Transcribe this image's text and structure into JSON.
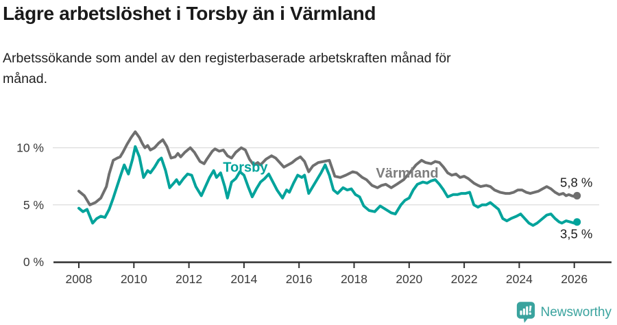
{
  "header": {
    "title": "Lägre arbetslöshet i Torsby än i Värmland",
    "subtitle": "Arbetssökande som andel av den registerbaserade arbetskraften månad för\nmånad."
  },
  "footer": {
    "brand": "Newsworthy",
    "brand_color": "#3aa39e"
  },
  "chart_data": {
    "type": "line",
    "title": "Lägre arbetslöshet i Torsby än i Värmland",
    "subtitle": "Arbetssökande som andel av den registerbaserade arbetskraften månad för månad.",
    "xlabel": "",
    "ylabel": "",
    "x_range": [
      2008,
      2026.2
    ],
    "ylim": [
      0,
      12
    ],
    "grid": true,
    "legend_position": "inline-labels",
    "x_ticks": [
      2008,
      2010,
      2012,
      2014,
      2016,
      2018,
      2020,
      2022,
      2024,
      2026
    ],
    "y_ticks": [
      {
        "value": 0,
        "label": "0 %"
      },
      {
        "value": 5,
        "label": "5 %"
      },
      {
        "value": 10,
        "label": "10 %"
      }
    ],
    "series": [
      {
        "name": "Värmland",
        "color": "#6f6f6f",
        "label_color": "#7d7d7d",
        "label_pos": [
          2019.93,
          7.4
        ],
        "end_label": "5,8 %",
        "end_label_side": "above",
        "end_value": 5.8,
        "points": [
          [
            2008.0,
            6.2
          ],
          [
            2008.2,
            5.8
          ],
          [
            2008.4,
            5.0
          ],
          [
            2008.6,
            5.2
          ],
          [
            2008.8,
            5.6
          ],
          [
            2009.0,
            6.6
          ],
          [
            2009.1,
            7.7
          ],
          [
            2009.25,
            8.9
          ],
          [
            2009.4,
            9.1
          ],
          [
            2009.5,
            9.2
          ],
          [
            2009.6,
            9.6
          ],
          [
            2009.75,
            10.3
          ],
          [
            2009.9,
            10.9
          ],
          [
            2010.05,
            11.4
          ],
          [
            2010.2,
            10.9
          ],
          [
            2010.3,
            10.4
          ],
          [
            2010.4,
            10.0
          ],
          [
            2010.5,
            10.2
          ],
          [
            2010.6,
            9.8
          ],
          [
            2010.75,
            10.0
          ],
          [
            2010.9,
            10.4
          ],
          [
            2011.05,
            10.7
          ],
          [
            2011.2,
            10.1
          ],
          [
            2011.35,
            9.1
          ],
          [
            2011.5,
            9.2
          ],
          [
            2011.6,
            9.5
          ],
          [
            2011.7,
            9.2
          ],
          [
            2011.85,
            9.6
          ],
          [
            2012.05,
            10.0
          ],
          [
            2012.2,
            9.6
          ],
          [
            2012.4,
            8.8
          ],
          [
            2012.55,
            8.6
          ],
          [
            2012.65,
            9.0
          ],
          [
            2012.85,
            9.7
          ],
          [
            2012.95,
            9.9
          ],
          [
            2013.1,
            9.7
          ],
          [
            2013.25,
            9.8
          ],
          [
            2013.4,
            9.3
          ],
          [
            2013.55,
            9.1
          ],
          [
            2013.7,
            9.6
          ],
          [
            2013.9,
            10.0
          ],
          [
            2014.05,
            9.8
          ],
          [
            2014.2,
            9.0
          ],
          [
            2014.35,
            8.5
          ],
          [
            2014.5,
            8.7
          ],
          [
            2014.6,
            8.5
          ],
          [
            2014.8,
            9.0
          ],
          [
            2015.0,
            9.3
          ],
          [
            2015.15,
            9.1
          ],
          [
            2015.3,
            8.7
          ],
          [
            2015.45,
            8.3
          ],
          [
            2015.6,
            8.5
          ],
          [
            2015.75,
            8.7
          ],
          [
            2015.9,
            9.0
          ],
          [
            2016.05,
            9.2
          ],
          [
            2016.2,
            8.8
          ],
          [
            2016.35,
            7.9
          ],
          [
            2016.5,
            8.4
          ],
          [
            2016.7,
            8.7
          ],
          [
            2016.9,
            8.8
          ],
          [
            2017.1,
            8.9
          ],
          [
            2017.3,
            7.5
          ],
          [
            2017.5,
            7.4
          ],
          [
            2017.7,
            7.6
          ],
          [
            2017.95,
            7.9
          ],
          [
            2018.1,
            7.8
          ],
          [
            2018.3,
            7.4
          ],
          [
            2018.45,
            7.2
          ],
          [
            2018.65,
            6.7
          ],
          [
            2018.85,
            6.5
          ],
          [
            2019.0,
            6.7
          ],
          [
            2019.15,
            6.8
          ],
          [
            2019.35,
            6.5
          ],
          [
            2019.55,
            6.8
          ],
          [
            2019.8,
            7.2
          ],
          [
            2020.05,
            7.9
          ],
          [
            2020.25,
            8.5
          ],
          [
            2020.45,
            8.9
          ],
          [
            2020.6,
            8.7
          ],
          [
            2020.8,
            8.6
          ],
          [
            2020.95,
            8.8
          ],
          [
            2021.1,
            8.7
          ],
          [
            2021.25,
            8.3
          ],
          [
            2021.4,
            7.8
          ],
          [
            2021.55,
            7.6
          ],
          [
            2021.7,
            7.7
          ],
          [
            2021.85,
            7.4
          ],
          [
            2022.0,
            7.5
          ],
          [
            2022.15,
            7.3
          ],
          [
            2022.35,
            6.9
          ],
          [
            2022.5,
            6.7
          ],
          [
            2022.6,
            6.6
          ],
          [
            2022.8,
            6.7
          ],
          [
            2022.95,
            6.6
          ],
          [
            2023.1,
            6.3
          ],
          [
            2023.3,
            6.1
          ],
          [
            2023.5,
            6.0
          ],
          [
            2023.65,
            6.0
          ],
          [
            2023.8,
            6.1
          ],
          [
            2023.95,
            6.3
          ],
          [
            2024.1,
            6.3
          ],
          [
            2024.25,
            6.1
          ],
          [
            2024.4,
            6.0
          ],
          [
            2024.55,
            6.1
          ],
          [
            2024.7,
            6.2
          ],
          [
            2024.85,
            6.4
          ],
          [
            2025.0,
            6.6
          ],
          [
            2025.15,
            6.4
          ],
          [
            2025.3,
            6.1
          ],
          [
            2025.45,
            5.9
          ],
          [
            2025.6,
            6.0
          ],
          [
            2025.7,
            5.8
          ],
          [
            2025.8,
            5.9
          ],
          [
            2025.9,
            5.8
          ],
          [
            2026.05,
            5.7
          ],
          [
            2026.1,
            5.8
          ]
        ]
      },
      {
        "name": "Torsby",
        "color": "#00a39b",
        "label_color": "#00a39b",
        "label_pos": [
          2014.05,
          7.9
        ],
        "end_label": "3,5 %",
        "end_label_side": "below",
        "end_value": 3.5,
        "points": [
          [
            2008.0,
            4.7
          ],
          [
            2008.15,
            4.4
          ],
          [
            2008.3,
            4.6
          ],
          [
            2008.5,
            3.4
          ],
          [
            2008.65,
            3.8
          ],
          [
            2008.8,
            4.0
          ],
          [
            2008.95,
            3.9
          ],
          [
            2009.1,
            4.6
          ],
          [
            2009.25,
            5.6
          ],
          [
            2009.4,
            6.7
          ],
          [
            2009.55,
            7.8
          ],
          [
            2009.65,
            8.5
          ],
          [
            2009.8,
            7.7
          ],
          [
            2009.95,
            9.0
          ],
          [
            2010.05,
            10.1
          ],
          [
            2010.2,
            9.2
          ],
          [
            2010.35,
            7.4
          ],
          [
            2010.5,
            8.0
          ],
          [
            2010.6,
            7.8
          ],
          [
            2010.75,
            8.3
          ],
          [
            2010.9,
            8.9
          ],
          [
            2011.0,
            9.1
          ],
          [
            2011.15,
            8.0
          ],
          [
            2011.3,
            6.5
          ],
          [
            2011.45,
            6.9
          ],
          [
            2011.55,
            7.2
          ],
          [
            2011.65,
            6.8
          ],
          [
            2011.8,
            7.3
          ],
          [
            2011.95,
            7.7
          ],
          [
            2012.1,
            7.6
          ],
          [
            2012.25,
            6.6
          ],
          [
            2012.45,
            5.8
          ],
          [
            2012.6,
            6.6
          ],
          [
            2012.75,
            7.4
          ],
          [
            2012.9,
            8.0
          ],
          [
            2013.0,
            7.4
          ],
          [
            2013.15,
            7.8
          ],
          [
            2013.3,
            6.6
          ],
          [
            2013.4,
            5.6
          ],
          [
            2013.55,
            7.0
          ],
          [
            2013.7,
            7.3
          ],
          [
            2013.85,
            7.9
          ],
          [
            2014.0,
            7.6
          ],
          [
            2014.15,
            6.6
          ],
          [
            2014.3,
            5.7
          ],
          [
            2014.45,
            6.4
          ],
          [
            2014.6,
            7.0
          ],
          [
            2014.75,
            7.3
          ],
          [
            2014.9,
            7.7
          ],
          [
            2015.05,
            7.0
          ],
          [
            2015.2,
            6.3
          ],
          [
            2015.4,
            5.6
          ],
          [
            2015.55,
            6.3
          ],
          [
            2015.65,
            6.1
          ],
          [
            2015.8,
            6.9
          ],
          [
            2015.95,
            7.6
          ],
          [
            2016.1,
            7.4
          ],
          [
            2016.2,
            7.6
          ],
          [
            2016.35,
            6.0
          ],
          [
            2016.5,
            6.6
          ],
          [
            2016.65,
            7.2
          ],
          [
            2016.8,
            7.8
          ],
          [
            2016.95,
            8.5
          ],
          [
            2017.1,
            7.6
          ],
          [
            2017.25,
            6.3
          ],
          [
            2017.4,
            6.0
          ],
          [
            2017.6,
            6.5
          ],
          [
            2017.75,
            6.3
          ],
          [
            2017.9,
            6.4
          ],
          [
            2018.05,
            5.9
          ],
          [
            2018.2,
            5.7
          ],
          [
            2018.35,
            4.9
          ],
          [
            2018.55,
            4.5
          ],
          [
            2018.75,
            4.4
          ],
          [
            2018.95,
            4.9
          ],
          [
            2019.15,
            4.6
          ],
          [
            2019.35,
            4.3
          ],
          [
            2019.5,
            4.2
          ],
          [
            2019.7,
            5.0
          ],
          [
            2019.85,
            5.4
          ],
          [
            2020.0,
            5.6
          ],
          [
            2020.15,
            6.3
          ],
          [
            2020.3,
            6.8
          ],
          [
            2020.5,
            7.0
          ],
          [
            2020.65,
            6.9
          ],
          [
            2020.8,
            7.1
          ],
          [
            2020.95,
            7.2
          ],
          [
            2021.1,
            6.8
          ],
          [
            2021.25,
            6.3
          ],
          [
            2021.4,
            5.7
          ],
          [
            2021.6,
            5.9
          ],
          [
            2021.75,
            5.9
          ],
          [
            2021.9,
            6.0
          ],
          [
            2022.05,
            6.0
          ],
          [
            2022.2,
            6.1
          ],
          [
            2022.35,
            5.0
          ],
          [
            2022.5,
            4.8
          ],
          [
            2022.65,
            5.0
          ],
          [
            2022.8,
            5.0
          ],
          [
            2022.95,
            5.2
          ],
          [
            2023.1,
            4.9
          ],
          [
            2023.25,
            4.6
          ],
          [
            2023.4,
            3.8
          ],
          [
            2023.55,
            3.6
          ],
          [
            2023.7,
            3.8
          ],
          [
            2023.9,
            4.0
          ],
          [
            2024.05,
            4.2
          ],
          [
            2024.2,
            3.8
          ],
          [
            2024.35,
            3.4
          ],
          [
            2024.5,
            3.2
          ],
          [
            2024.65,
            3.4
          ],
          [
            2024.8,
            3.7
          ],
          [
            2025.0,
            4.1
          ],
          [
            2025.15,
            4.2
          ],
          [
            2025.3,
            3.8
          ],
          [
            2025.45,
            3.5
          ],
          [
            2025.55,
            3.4
          ],
          [
            2025.7,
            3.6
          ],
          [
            2025.85,
            3.5
          ],
          [
            2026.0,
            3.4
          ],
          [
            2026.1,
            3.5
          ]
        ]
      }
    ]
  }
}
